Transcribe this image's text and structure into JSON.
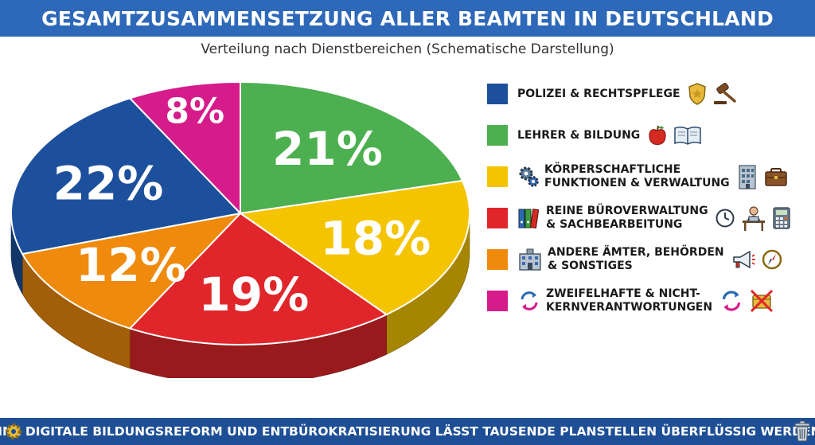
{
  "header": {
    "title": "GESAMTZUSAMMENSETZUNG ALLER BEAMTEN IN DEUTSCHLAND",
    "subtitle": "Verteilung nach Dienstbereichen (Schematische Darstellung)"
  },
  "chart_data": {
    "type": "pie",
    "title": "GESAMTZUSAMMENSETZUNG ALLER BEAMTEN IN DEUTSCHLAND",
    "subtitle": "Verteilung nach Dienstbereichen (Schematische Darstellung)",
    "legend_position": "right",
    "slices": [
      {
        "label": "LEHRER & BILDUNG",
        "value": 21,
        "display": "21%",
        "color": "#4caf50"
      },
      {
        "label": "KÖRPERSCHAFTLICHE FUNKTIONEN & VERWALTUNG",
        "value": 18,
        "display": "18%",
        "color": "#f4c400"
      },
      {
        "label": "REINE BÜROVERWALTUNG & SACHBEARBEITUNG",
        "value": 19,
        "display": "19%",
        "color": "#e0262a"
      },
      {
        "label": "ANDERE ÄMTER, BEHÖRDEN & SONSTIGES",
        "value": 12,
        "display": "12%",
        "color": "#ef8a0c"
      },
      {
        "label": "POLIZEI & RECHTSPFLEGE",
        "value": 22,
        "display": "22%",
        "color": "#1c4f9c"
      },
      {
        "label": "ZWEIFELHAFTE & NICHT-KERNVERANTWORTUNGEN",
        "value": 8,
        "display": "8%",
        "color": "#d61c8a"
      }
    ]
  },
  "legend": {
    "items": [
      {
        "line1": "POLIZEI & RECHTSPFLEGE",
        "line2": "",
        "color": "#1c4f9c",
        "icons": [
          "police-badge-icon",
          "gavel-icon"
        ]
      },
      {
        "line1": "LEHRER & BILDUNG",
        "line2": "",
        "color": "#4caf50",
        "icons": [
          "apple-icon",
          "open-book-icon"
        ]
      },
      {
        "line1": "KÖRPERSCHAFTLICHE",
        "line2": "FUNKTIONEN & VERWALTUNG",
        "color": "#f4c400",
        "icons": [
          "gears-icon",
          "office-building-icon",
          "briefcase-icon"
        ]
      },
      {
        "line1": "REINE BÜROVERWALTUNG",
        "line2": "& SACHBEARBEITUNG",
        "color": "#e0262a",
        "icons": [
          "binders-icon",
          "clock-icon",
          "desk-worker-icon",
          "calculator-icon"
        ]
      },
      {
        "line1": "ANDERE ÄMTER, BEHÖRDEN",
        "line2": "& SONSTIGES",
        "color": "#ef8a0c",
        "icons": [
          "government-building-icon",
          "megaphone-icon",
          "compass-icon"
        ]
      },
      {
        "line1": "ZWEIFELHAFTE & NICHT-",
        "line2": "KERNVERANTWORTUNGEN",
        "color": "#d61c8a",
        "icons": [
          "refresh-arrows-icon",
          "refresh-arrows-icon",
          "crossed-out-icon"
        ]
      }
    ]
  },
  "footer": {
    "text": "EINE DIGITALE BILDUNGSREFORM UND ENTBÜROKRATISIERUNG LÄSST TAUSENDE PLANSTELLEN ÜBERFLÜSSIG WERDEN.",
    "icons": [
      "gear-icon",
      "trash-bin-icon"
    ]
  }
}
